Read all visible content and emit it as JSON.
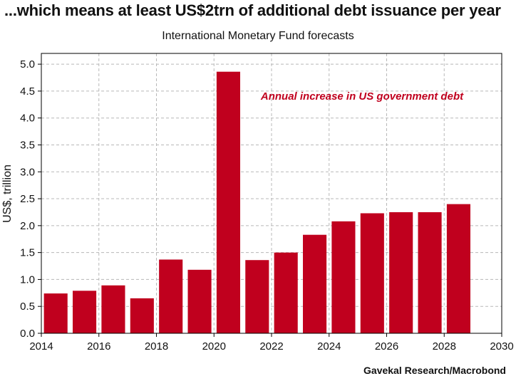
{
  "header": {
    "title": "...which means at least US$2trn of additional debt issuance per year",
    "subtitle": "International Monetary Fund forecasts"
  },
  "footer": {
    "source": "Gavekal Research/Macrobond"
  },
  "colors": {
    "bar": "#c0001e",
    "annotation": "#c0001e",
    "grid": "#b8b8b8",
    "axis": "#000000"
  },
  "chart_data": {
    "type": "bar",
    "title": "...which means at least US$2trn of additional debt issuance per year",
    "subtitle": "International Monetary Fund forecasts",
    "xlabel": "",
    "ylabel": "US$, trillion",
    "xlim": [
      2014,
      2030
    ],
    "ylim": [
      0,
      5.2
    ],
    "x_ticks": [
      2014,
      2016,
      2018,
      2020,
      2022,
      2024,
      2026,
      2028,
      2030
    ],
    "y_ticks": [
      "0.0",
      "0.5",
      "1.0",
      "1.5",
      "2.0",
      "2.5",
      "3.0",
      "3.5",
      "4.0",
      "4.5",
      "5.0"
    ],
    "grid": true,
    "annotation": "Annual increase in US government debt",
    "categories": [
      2014,
      2015,
      2016,
      2017,
      2018,
      2019,
      2020,
      2021,
      2022,
      2023,
      2024,
      2025,
      2026,
      2027,
      2028
    ],
    "values": [
      0.74,
      0.79,
      0.89,
      0.65,
      1.37,
      1.18,
      4.86,
      1.36,
      1.5,
      1.83,
      2.08,
      2.23,
      2.25,
      2.25,
      2.4
    ]
  }
}
